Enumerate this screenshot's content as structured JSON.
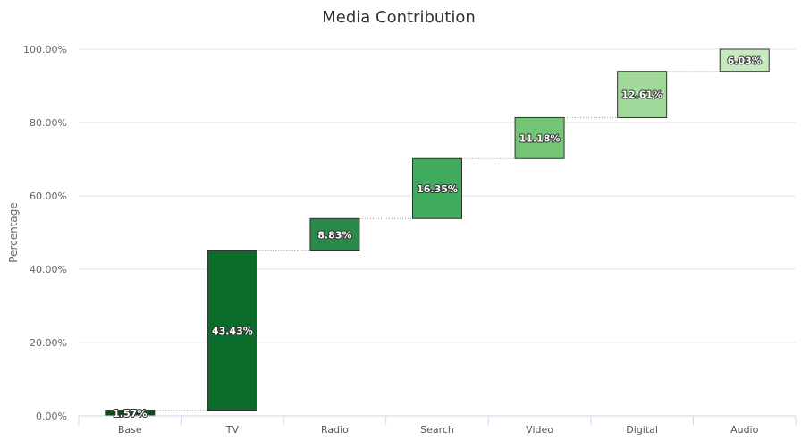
{
  "chart_data": {
    "type": "bar",
    "subtype": "waterfall",
    "title": "Media Contribution",
    "xlabel": "",
    "ylabel": "Percentage",
    "ylim": [
      0,
      100
    ],
    "yticks": [
      "0.00%",
      "20.00%",
      "40.00%",
      "60.00%",
      "80.00%",
      "100.00%"
    ],
    "grid": true,
    "categories": [
      "Base",
      "TV",
      "Radio",
      "Search",
      "Video",
      "Digital",
      "Audio"
    ],
    "values": [
      1.57,
      43.43,
      8.83,
      16.35,
      11.18,
      12.61,
      6.03
    ],
    "data_labels": [
      "1.57%",
      "43.43%",
      "8.83%",
      "16.35%",
      "11.18%",
      "12.61%",
      "6.03%"
    ],
    "colors": [
      "#0a4d1c",
      "#0a6b2b",
      "#2b8a4a",
      "#41ab5d",
      "#74c476",
      "#a1d99b",
      "#c7e9c0"
    ]
  }
}
